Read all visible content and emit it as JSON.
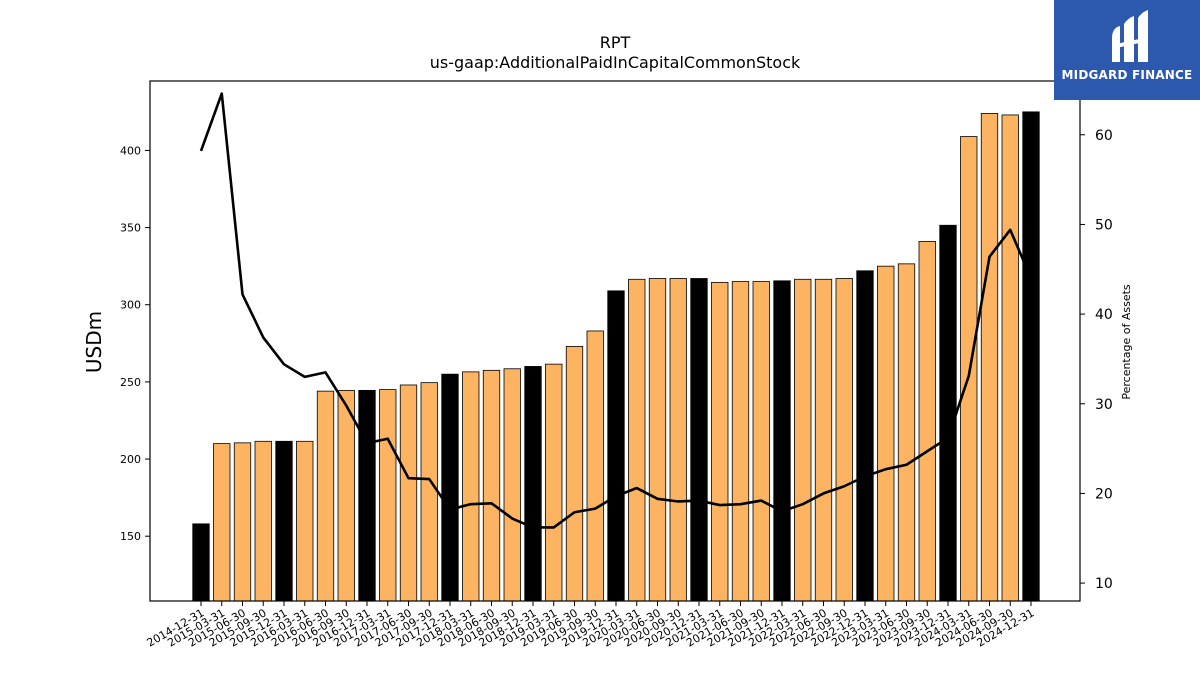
{
  "logo": {
    "text": "MIDGARD FINANCE"
  },
  "chart_data": {
    "type": "bar",
    "title": "RPT",
    "subtitle": "us-gaap:AdditionalPaidInCapitalCommonStock",
    "ylabel": "USDm",
    "y2label": "Percentage of Assets",
    "ylim": [
      108,
      445
    ],
    "y2lim": [
      8,
      66
    ],
    "yticks": [
      150,
      200,
      250,
      300,
      350,
      400
    ],
    "y2ticks": [
      10,
      20,
      30,
      40,
      50,
      60
    ],
    "colors": {
      "bar": "#fdb462",
      "bar_year_end": "#000000",
      "line": "#000000"
    },
    "categories": [
      "2014-12-31",
      "2015-03-31",
      "2015-06-30",
      "2015-09-30",
      "2015-12-31",
      "2016-03-31",
      "2016-06-30",
      "2016-09-30",
      "2016-12-31",
      "2017-03-31",
      "2017-06-30",
      "2017-09-30",
      "2017-12-31",
      "2018-03-31",
      "2018-06-30",
      "2018-09-30",
      "2018-12-31",
      "2019-03-31",
      "2019-06-30",
      "2019-09-30",
      "2019-12-31",
      "2020-03-31",
      "2020-06-30",
      "2020-09-30",
      "2020-12-31",
      "2021-03-31",
      "2021-06-30",
      "2021-09-30",
      "2021-12-31",
      "2022-03-31",
      "2022-06-30",
      "2022-09-30",
      "2022-12-31",
      "2023-03-31",
      "2023-06-30",
      "2023-09-30",
      "2023-12-31",
      "2024-03-31",
      "2024-06-30",
      "2024-09-30",
      "2024-12-31"
    ],
    "series": [
      {
        "type": "bar",
        "values": [
          158,
          210,
          210.5,
          211.5,
          211.5,
          211.5,
          244,
          244.5,
          244.5,
          245,
          248,
          249.5,
          255,
          256.5,
          257.5,
          258.5,
          260,
          261.5,
          273,
          283,
          309,
          316.5,
          317,
          317,
          317,
          314.5,
          315,
          315,
          315.5,
          316.5,
          316.5,
          317,
          322,
          325,
          326.5,
          341,
          351.5,
          409,
          424,
          423,
          425
        ]
      },
      {
        "type": "line",
        "axis": "right",
        "values": [
          58.2,
          64.6,
          42.2,
          37.4,
          34.4,
          33.0,
          33.5,
          29.8,
          25.6,
          26.1,
          21.7,
          21.6,
          18.2,
          18.8,
          18.9,
          17.2,
          16.2,
          16.2,
          17.9,
          18.3,
          19.7,
          20.6,
          19.4,
          19.1,
          19.2,
          18.7,
          18.8,
          19.2,
          18.0,
          18.8,
          20.0,
          20.8,
          21.9,
          22.7,
          23.2,
          24.7,
          26.2,
          33.1,
          46.4,
          49.4,
          44.0
        ]
      }
    ]
  }
}
